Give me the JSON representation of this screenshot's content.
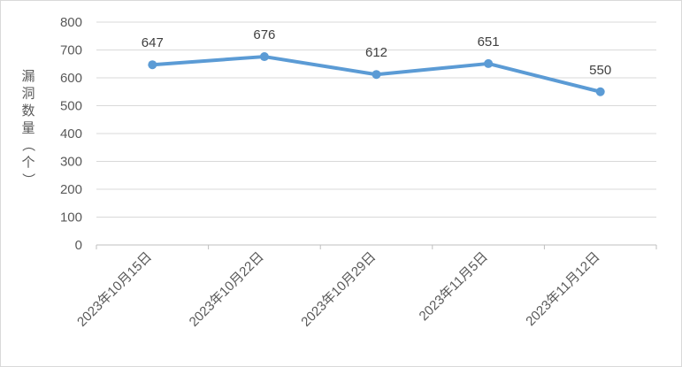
{
  "chart_data": {
    "type": "line",
    "title": "",
    "xlabel": "",
    "ylabel": "漏洞数量（个）",
    "categories": [
      "2023年10月15日",
      "2023年10月22日",
      "2023年10月29日",
      "2023年11月5日",
      "2023年11月12日"
    ],
    "series": [
      {
        "values": [
          647,
          676,
          612,
          651,
          550
        ],
        "color": "#5b9bd5"
      }
    ],
    "ylim": [
      0,
      800
    ],
    "yticks": [
      0,
      100,
      200,
      300,
      400,
      500,
      600,
      700,
      800
    ],
    "grid": true,
    "legend": "none",
    "data_labels": true
  }
}
